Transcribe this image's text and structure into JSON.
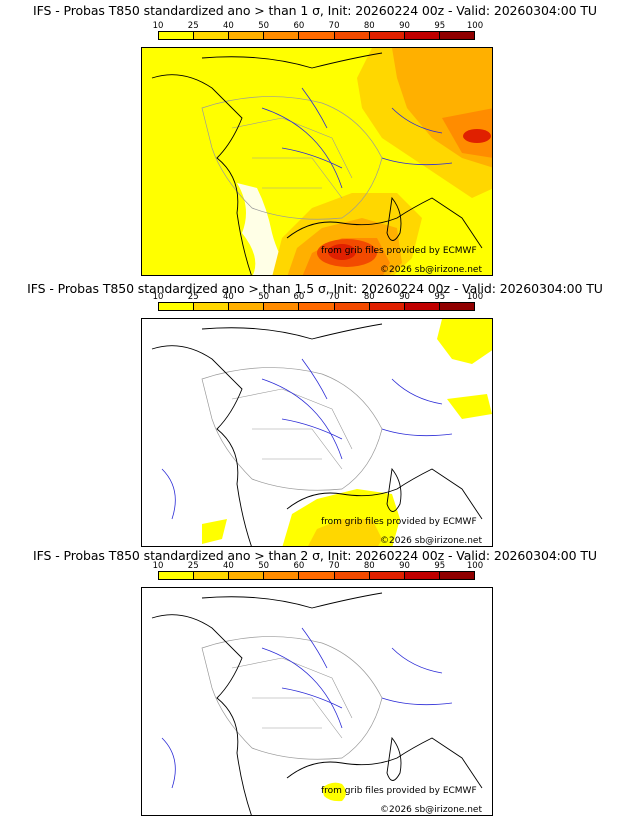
{
  "panels": [
    {
      "title": "IFS - Probas T850  standardized ano > than 1 σ, Init: 20260224 00z - Valid: 20260304:00 TU",
      "source_text": "from grib files provided by ECMWF",
      "copyright_text": "©2026 sb@irizone.net"
    },
    {
      "title": "IFS - Probas T850  standardized ano > than 1.5 σ, Init: 20260224 00z - Valid: 20260304:00 TU",
      "source_text": "from grib files provided by ECMWF",
      "copyright_text": "©2026 sb@irizone.net"
    },
    {
      "title": "IFS - Probas T850  standardized ano > than 2 σ, Init: 20260224 00z - Valid: 20260304:00 TU",
      "source_text": "from grib files provided by ECMWF",
      "copyright_text": "©2026 sb@irizone.net"
    }
  ],
  "colorbar": {
    "ticks": [
      "10",
      "25",
      "40",
      "50",
      "60",
      "70",
      "80",
      "90",
      "95",
      "100"
    ],
    "colors": [
      "#ffff00",
      "#ffd700",
      "#ffb000",
      "#ff8c00",
      "#ff6a00",
      "#f24a00",
      "#e02000",
      "#c00000",
      "#900000",
      "#600000"
    ]
  },
  "map_colors": {
    "water": "#ffffff",
    "coast": "#000000",
    "rivers": "#2b2bd6",
    "borders": "#9a9a9a"
  }
}
